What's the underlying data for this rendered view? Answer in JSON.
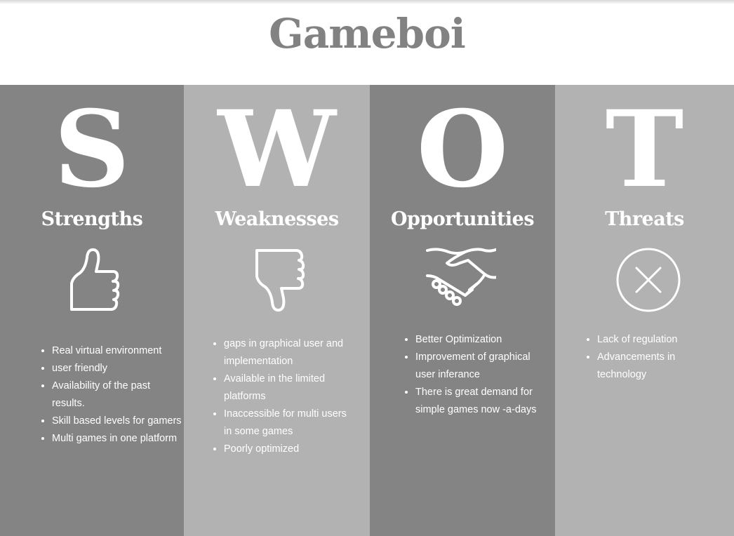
{
  "title": "Gameboi",
  "colors": {
    "dark": "#848484",
    "light": "#b2b2b2",
    "title": "#828282",
    "text": "#ffffff"
  },
  "columns": [
    {
      "letter": "S",
      "heading": "Strengths",
      "icon": "thumbs-up-icon",
      "items": [
        "Real virtual environment",
        "user friendly",
        "Availability of the past results.",
        "Skill based levels  for gamers",
        "Multi games in one platform"
      ]
    },
    {
      "letter": "W",
      "heading": "Weaknesses",
      "icon": "thumbs-down-icon",
      "items": [
        "gaps in graphical user and implementation",
        "Available in the limited platforms",
        "Inaccessible for multi users in some games",
        "Poorly optimized"
      ]
    },
    {
      "letter": "O",
      "heading": "Opportunities",
      "icon": "handshake-icon",
      "items": [
        "Better Optimization",
        "Improvement of graphical user inferance",
        "There  is great demand for simple games now -a-days"
      ]
    },
    {
      "letter": "T",
      "heading": "Threats",
      "icon": "circle-x-icon",
      "items": [
        "Lack of regulation",
        "Advancements in technology"
      ]
    }
  ]
}
